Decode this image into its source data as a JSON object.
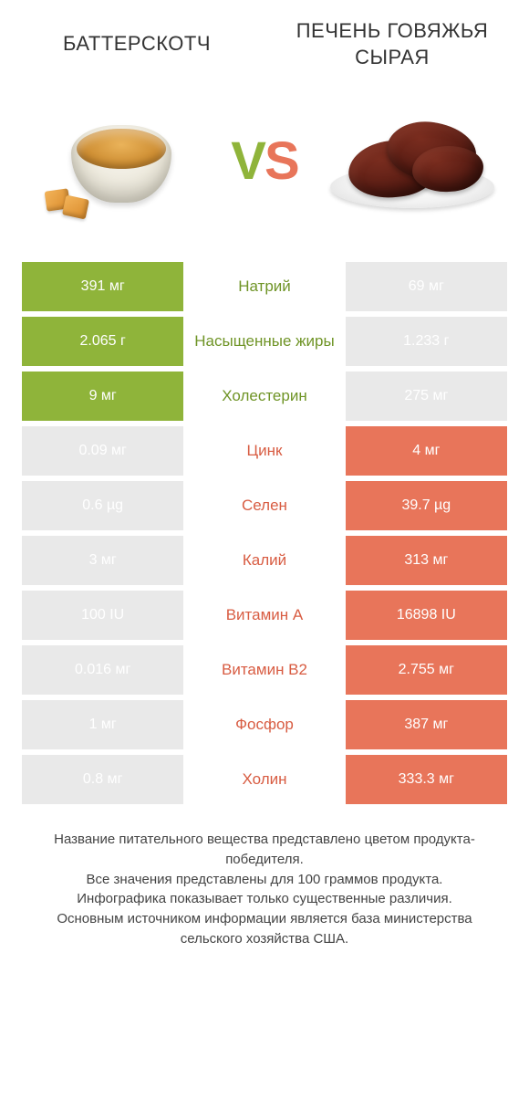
{
  "colors": {
    "green": "#8fb43a",
    "orange": "#e8755a",
    "grey_bg": "#e9e9e9",
    "grey_text": "#6d6d6d",
    "green_text": "#6f9426",
    "orange_text": "#d85c42",
    "page_bg": "#ffffff"
  },
  "header": {
    "left": "БАТТЕРСКОТЧ",
    "right": "ПЕЧЕНЬ ГОВЯЖЬЯ СЫРАЯ"
  },
  "vs": {
    "v": "V",
    "s": "S"
  },
  "rows": [
    {
      "label": "Натрий",
      "left": "391 мг",
      "right": "69 мг",
      "winner": "left"
    },
    {
      "label": "Насыщенные жиры",
      "left": "2.065 г",
      "right": "1.233 г",
      "winner": "left"
    },
    {
      "label": "Холестерин",
      "left": "9 мг",
      "right": "275 мг",
      "winner": "left"
    },
    {
      "label": "Цинк",
      "left": "0.09 мг",
      "right": "4 мг",
      "winner": "right"
    },
    {
      "label": "Селен",
      "left": "0.6 µg",
      "right": "39.7 µg",
      "winner": "right"
    },
    {
      "label": "Калий",
      "left": "3 мг",
      "right": "313 мг",
      "winner": "right"
    },
    {
      "label": "Витамин A",
      "left": "100 IU",
      "right": "16898 IU",
      "winner": "right"
    },
    {
      "label": "Витамин B2",
      "left": "0.016 мг",
      "right": "2.755 мг",
      "winner": "right"
    },
    {
      "label": "Фосфор",
      "left": "1 мг",
      "right": "387 мг",
      "winner": "right"
    },
    {
      "label": "Холин",
      "left": "0.8 мг",
      "right": "333.3 мг",
      "winner": "right"
    }
  ],
  "footer": {
    "l1": "Название питательного вещества представлено цветом продукта-победителя.",
    "l2": "Все значения представлены для 100 граммов продукта.",
    "l3": "Инфографика показывает только существенные различия.",
    "l4": "Основным источником информации является база министерства сельского хозяйства США."
  }
}
